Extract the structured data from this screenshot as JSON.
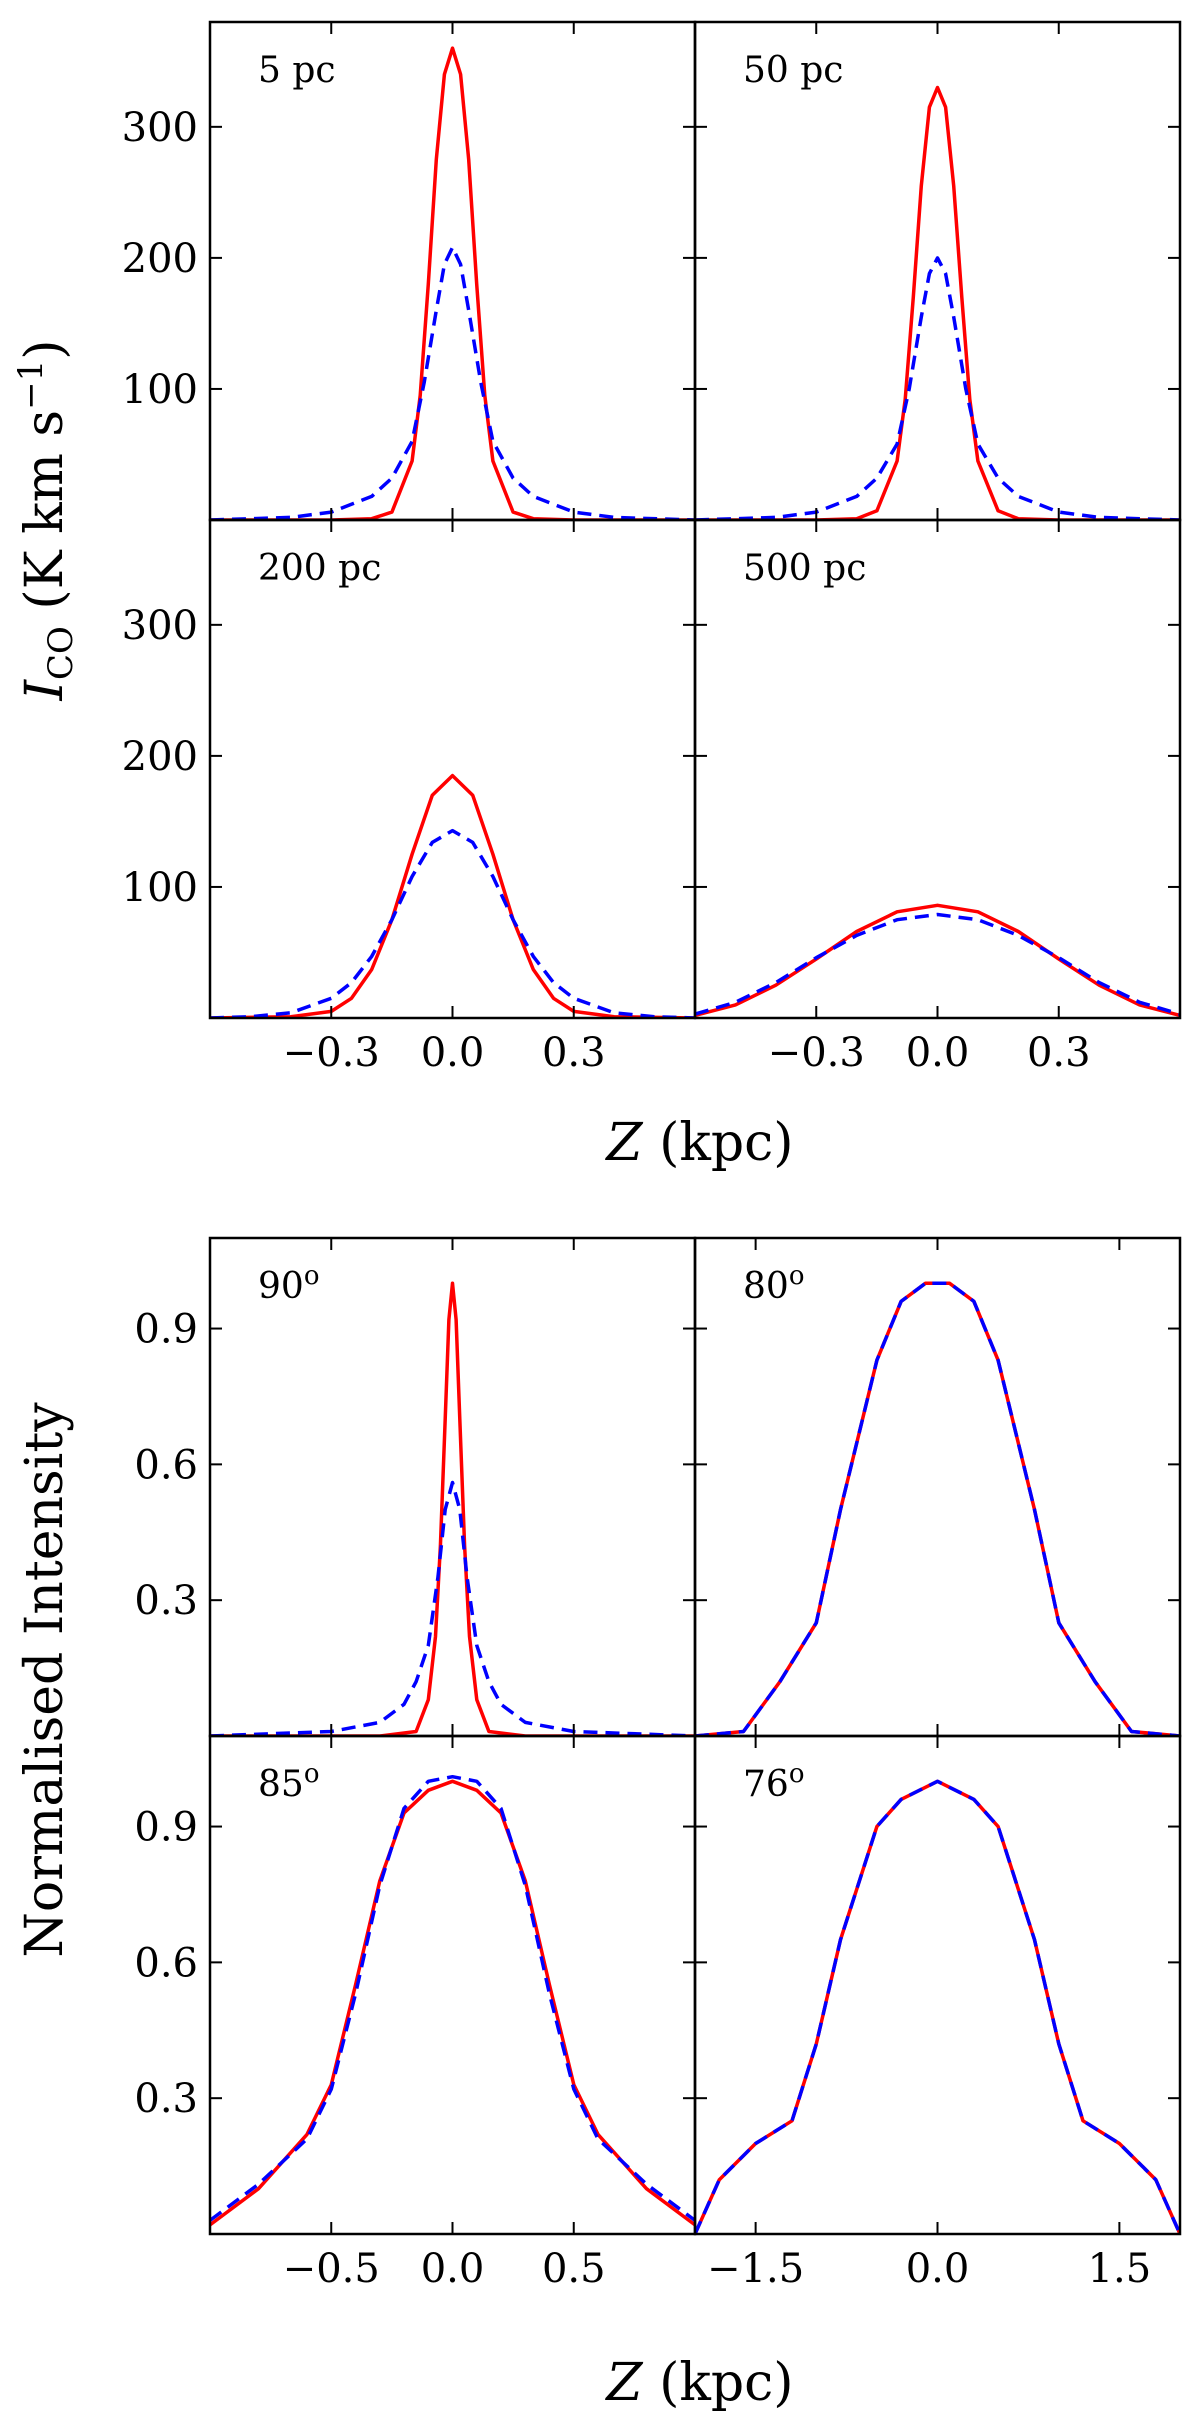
{
  "figure": {
    "top_ylabel_main": "I",
    "top_ylabel_sub": "CO",
    "top_ylabel_rest": " (K km s",
    "top_ylabel_exp": "−1",
    "top_ylabel_close": ")",
    "top_xlabel_var": "Z",
    "top_xlabel_unit": " (kpc)",
    "bottom_ylabel": "Normalised Intensity",
    "bottom_xlabel_var": "Z",
    "bottom_xlabel_unit": " (kpc)"
  },
  "chart_data": [
    {
      "type": "line",
      "group": "top",
      "label": "5 pc",
      "xlim": [
        -0.6,
        0.6
      ],
      "ylim": [
        0,
        380
      ],
      "xticks": [
        -0.3,
        0.0,
        0.3
      ],
      "xtick_labels": [
        "−0.3",
        "0.0",
        "0.3"
      ],
      "yticks": [
        100,
        200,
        300
      ],
      "ytick_labels": [
        "100",
        "200",
        "300"
      ],
      "series": [
        {
          "style": "solid",
          "color": "#ff0000",
          "x": [
            -0.6,
            -0.3,
            -0.2,
            -0.15,
            -0.1,
            -0.08,
            -0.06,
            -0.04,
            -0.02,
            0,
            0.02,
            0.04,
            0.06,
            0.08,
            0.1,
            0.15,
            0.2,
            0.3,
            0.6
          ],
          "y": [
            0,
            0,
            1,
            6,
            45,
            95,
            180,
            275,
            340,
            360,
            340,
            275,
            180,
            95,
            45,
            6,
            1,
            0,
            0
          ]
        },
        {
          "style": "dashed",
          "color": "#0000ff",
          "x": [
            -0.6,
            -0.4,
            -0.3,
            -0.2,
            -0.15,
            -0.1,
            -0.07,
            -0.04,
            -0.02,
            0,
            0.02,
            0.04,
            0.07,
            0.1,
            0.15,
            0.2,
            0.3,
            0.4,
            0.6
          ],
          "y": [
            0,
            2,
            6,
            18,
            32,
            60,
            105,
            160,
            195,
            208,
            195,
            160,
            105,
            60,
            32,
            18,
            6,
            2,
            0
          ]
        }
      ]
    },
    {
      "type": "line",
      "group": "top",
      "label": "50 pc",
      "xlim": [
        -0.6,
        0.6
      ],
      "ylim": [
        0,
        380
      ],
      "xticks": [
        -0.3,
        0.0,
        0.3
      ],
      "xtick_labels": [
        "−0.3",
        "0.0",
        "0.3"
      ],
      "yticks": [
        100,
        200,
        300
      ],
      "ytick_labels": [
        "100",
        "200",
        "300"
      ],
      "series": [
        {
          "style": "solid",
          "color": "#ff0000",
          "x": [
            -0.6,
            -0.3,
            -0.2,
            -0.15,
            -0.1,
            -0.08,
            -0.06,
            -0.04,
            -0.02,
            0,
            0.02,
            0.04,
            0.06,
            0.08,
            0.1,
            0.15,
            0.2,
            0.3,
            0.6
          ],
          "y": [
            0,
            0,
            1,
            7,
            45,
            92,
            170,
            255,
            315,
            330,
            315,
            255,
            170,
            92,
            45,
            7,
            1,
            0,
            0
          ]
        },
        {
          "style": "dashed",
          "color": "#0000ff",
          "x": [
            -0.6,
            -0.4,
            -0.3,
            -0.2,
            -0.15,
            -0.1,
            -0.07,
            -0.04,
            -0.02,
            0,
            0.02,
            0.04,
            0.07,
            0.1,
            0.15,
            0.2,
            0.3,
            0.4,
            0.6
          ],
          "y": [
            0,
            2,
            6,
            18,
            32,
            58,
            100,
            155,
            188,
            200,
            188,
            155,
            100,
            58,
            32,
            18,
            6,
            2,
            0
          ]
        }
      ]
    },
    {
      "type": "line",
      "group": "top",
      "label": "200 pc",
      "xlim": [
        -0.6,
        0.6
      ],
      "ylim": [
        0,
        380
      ],
      "xticks": [
        -0.3,
        0.0,
        0.3
      ],
      "xtick_labels": [
        "−0.3",
        "0.0",
        "0.3"
      ],
      "yticks": [
        100,
        200,
        300
      ],
      "ytick_labels": [
        "100",
        "200",
        "300"
      ],
      "series": [
        {
          "style": "solid",
          "color": "#ff0000",
          "x": [
            -0.6,
            -0.4,
            -0.3,
            -0.25,
            -0.2,
            -0.15,
            -0.1,
            -0.05,
            0,
            0.05,
            0.1,
            0.15,
            0.2,
            0.25,
            0.3,
            0.4,
            0.6
          ],
          "y": [
            0,
            1,
            5,
            15,
            37,
            75,
            125,
            170,
            185,
            170,
            125,
            75,
            37,
            15,
            5,
            1,
            0
          ]
        },
        {
          "style": "dashed",
          "color": "#0000ff",
          "x": [
            -0.6,
            -0.5,
            -0.4,
            -0.3,
            -0.25,
            -0.2,
            -0.15,
            -0.1,
            -0.05,
            0,
            0.05,
            0.1,
            0.15,
            0.2,
            0.25,
            0.3,
            0.4,
            0.5,
            0.6
          ],
          "y": [
            0,
            1,
            4,
            15,
            27,
            47,
            75,
            108,
            134,
            143,
            134,
            108,
            75,
            47,
            27,
            15,
            4,
            1,
            0
          ]
        }
      ]
    },
    {
      "type": "line",
      "group": "top",
      "label": "500 pc",
      "xlim": [
        -0.6,
        0.6
      ],
      "ylim": [
        0,
        380
      ],
      "xticks": [
        -0.3,
        0.0,
        0.3
      ],
      "xtick_labels": [
        "−0.3",
        "0.0",
        "0.3"
      ],
      "yticks": [
        100,
        200,
        300
      ],
      "ytick_labels": [
        "100",
        "200",
        "300"
      ],
      "series": [
        {
          "style": "solid",
          "color": "#ff0000",
          "x": [
            -0.6,
            -0.5,
            -0.4,
            -0.3,
            -0.2,
            -0.1,
            0,
            0.1,
            0.2,
            0.3,
            0.4,
            0.5,
            0.6
          ],
          "y": [
            2,
            10,
            25,
            45,
            66,
            81,
            86,
            81,
            66,
            45,
            25,
            10,
            2
          ]
        },
        {
          "style": "dashed",
          "color": "#0000ff",
          "x": [
            -0.6,
            -0.5,
            -0.4,
            -0.3,
            -0.2,
            -0.1,
            0,
            0.1,
            0.2,
            0.3,
            0.4,
            0.5,
            0.6
          ],
          "y": [
            3,
            12,
            27,
            46,
            63,
            75,
            79,
            75,
            63,
            46,
            27,
            12,
            3
          ]
        }
      ]
    },
    {
      "type": "line",
      "group": "bottom",
      "label": "90",
      "label_sup": "o",
      "xlim": [
        -1.0,
        1.0
      ],
      "ylim": [
        0,
        1.1
      ],
      "xticks": [
        -0.5,
        0.0,
        0.5
      ],
      "xtick_labels": [
        "−0.5",
        "0.0",
        "0.5"
      ],
      "yticks": [
        0.3,
        0.6,
        0.9
      ],
      "ytick_labels": [
        "0.3",
        "0.6",
        "0.9"
      ],
      "series": [
        {
          "style": "solid",
          "color": "#ff0000",
          "x": [
            -1.0,
            -0.3,
            -0.15,
            -0.1,
            -0.07,
            -0.05,
            -0.03,
            -0.015,
            0,
            0.015,
            0.03,
            0.05,
            0.07,
            0.1,
            0.15,
            0.3,
            1.0
          ],
          "y": [
            0,
            0,
            0.01,
            0.08,
            0.22,
            0.42,
            0.7,
            0.92,
            1.0,
            0.92,
            0.7,
            0.42,
            0.22,
            0.08,
            0.01,
            0,
            0
          ]
        },
        {
          "style": "dashed",
          "color": "#0000ff",
          "x": [
            -1.0,
            -0.5,
            -0.3,
            -0.2,
            -0.15,
            -0.1,
            -0.06,
            -0.03,
            0,
            0.03,
            0.06,
            0.1,
            0.15,
            0.2,
            0.3,
            0.5,
            1.0
          ],
          "y": [
            0,
            0.01,
            0.03,
            0.07,
            0.12,
            0.2,
            0.35,
            0.5,
            0.56,
            0.5,
            0.35,
            0.2,
            0.12,
            0.07,
            0.03,
            0.01,
            0
          ]
        }
      ]
    },
    {
      "type": "line",
      "group": "bottom",
      "label": "80",
      "label_sup": "o",
      "xlim": [
        -2.0,
        2.0
      ],
      "ylim": [
        0,
        1.1
      ],
      "xticks": [
        -1.5,
        0.0,
        1.5
      ],
      "xtick_labels": [
        "−1.5",
        "0.0",
        "1.5"
      ],
      "yticks": [
        0.3,
        0.6,
        0.9
      ],
      "ytick_labels": [
        "0.3",
        "0.6",
        "0.9"
      ],
      "series": [
        {
          "style": "solid",
          "color": "#ff0000",
          "x": [
            -2.0,
            -1.6,
            -1.3,
            -1.0,
            -0.8,
            -0.5,
            -0.3,
            -0.1,
            0,
            0.1,
            0.3,
            0.5,
            0.8,
            1.0,
            1.3,
            1.6,
            2.0
          ],
          "y": [
            0,
            0.01,
            0.12,
            0.25,
            0.5,
            0.83,
            0.96,
            1.0,
            1.0,
            1.0,
            0.96,
            0.83,
            0.5,
            0.25,
            0.12,
            0.01,
            0
          ]
        },
        {
          "style": "dashed",
          "color": "#0000ff",
          "x": [
            -2.0,
            -1.6,
            -1.3,
            -1.0,
            -0.8,
            -0.5,
            -0.3,
            -0.1,
            0,
            0.1,
            0.3,
            0.5,
            0.8,
            1.0,
            1.3,
            1.6,
            2.0
          ],
          "y": [
            0,
            0.01,
            0.12,
            0.25,
            0.5,
            0.83,
            0.96,
            1.0,
            1.0,
            1.0,
            0.96,
            0.83,
            0.5,
            0.25,
            0.12,
            0.01,
            0
          ]
        }
      ]
    },
    {
      "type": "line",
      "group": "bottom",
      "label": "85",
      "label_sup": "o",
      "xlim": [
        -1.0,
        1.0
      ],
      "ylim": [
        0,
        1.1
      ],
      "xticks": [
        -0.5,
        0.0,
        0.5
      ],
      "xtick_labels": [
        "−0.5",
        "0.0",
        "0.5"
      ],
      "yticks": [
        0.3,
        0.6,
        0.9
      ],
      "ytick_labels": [
        "0.3",
        "0.6",
        "0.9"
      ],
      "series": [
        {
          "style": "solid",
          "color": "#ff0000",
          "x": [
            -1.0,
            -0.8,
            -0.6,
            -0.5,
            -0.4,
            -0.3,
            -0.2,
            -0.1,
            0,
            0.1,
            0.2,
            0.3,
            0.4,
            0.5,
            0.6,
            0.8,
            1.0
          ],
          "y": [
            0.02,
            0.1,
            0.22,
            0.33,
            0.55,
            0.78,
            0.93,
            0.98,
            1.0,
            0.98,
            0.93,
            0.78,
            0.55,
            0.33,
            0.22,
            0.1,
            0.02
          ]
        },
        {
          "style": "dashed",
          "color": "#0000ff",
          "x": [
            -1.0,
            -0.8,
            -0.6,
            -0.5,
            -0.4,
            -0.3,
            -0.2,
            -0.1,
            0,
            0.1,
            0.2,
            0.3,
            0.4,
            0.5,
            0.6,
            0.8,
            1.0
          ],
          "y": [
            0.03,
            0.11,
            0.21,
            0.32,
            0.53,
            0.77,
            0.94,
            1.0,
            1.01,
            1.0,
            0.94,
            0.77,
            0.53,
            0.32,
            0.21,
            0.11,
            0.03
          ]
        }
      ]
    },
    {
      "type": "line",
      "group": "bottom",
      "label": "76",
      "label_sup": "o",
      "xlim": [
        -2.0,
        2.0
      ],
      "ylim": [
        0,
        1.1
      ],
      "xticks": [
        -1.5,
        0.0,
        1.5
      ],
      "xtick_labels": [
        "−1.5",
        "0.0",
        "1.5"
      ],
      "yticks": [
        0.3,
        0.6,
        0.9
      ],
      "ytick_labels": [
        "0.3",
        "0.6",
        "0.9"
      ],
      "series": [
        {
          "style": "solid",
          "color": "#ff0000",
          "x": [
            -2.0,
            -1.8,
            -1.5,
            -1.2,
            -1.0,
            -0.8,
            -0.5,
            -0.3,
            0,
            0.3,
            0.5,
            0.8,
            1.0,
            1.2,
            1.5,
            1.8,
            2.0
          ],
          "y": [
            0,
            0.12,
            0.2,
            0.25,
            0.42,
            0.65,
            0.9,
            0.96,
            1.0,
            0.96,
            0.9,
            0.65,
            0.42,
            0.25,
            0.2,
            0.12,
            0
          ]
        },
        {
          "style": "dashed",
          "color": "#0000ff",
          "x": [
            -2.0,
            -1.8,
            -1.5,
            -1.2,
            -1.0,
            -0.8,
            -0.5,
            -0.3,
            0,
            0.3,
            0.5,
            0.8,
            1.0,
            1.2,
            1.5,
            1.8,
            2.0
          ],
          "y": [
            0,
            0.12,
            0.2,
            0.25,
            0.42,
            0.65,
            0.9,
            0.96,
            1.0,
            0.96,
            0.9,
            0.65,
            0.42,
            0.25,
            0.2,
            0.12,
            0
          ]
        }
      ]
    }
  ]
}
